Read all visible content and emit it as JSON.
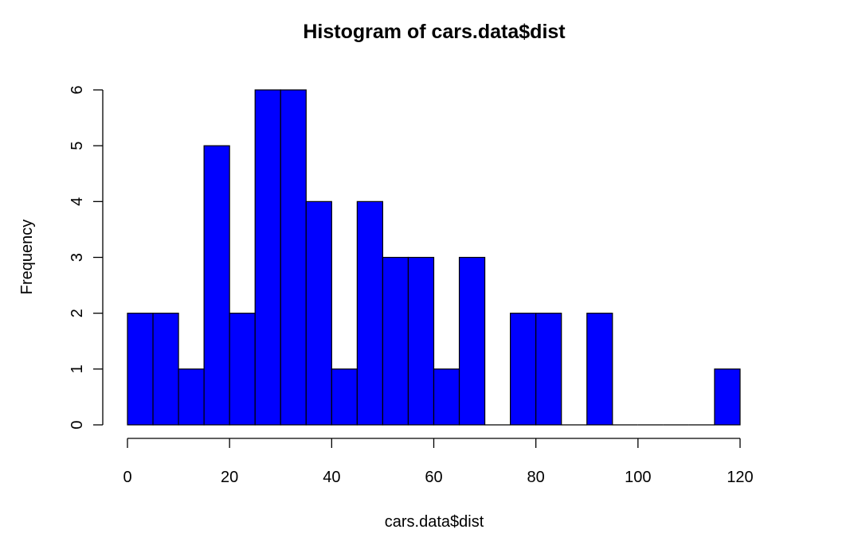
{
  "chart_data": {
    "type": "bar",
    "title": "Histogram of cars.data$dist",
    "xlabel": "cars.data$dist",
    "ylabel": "Frequency",
    "bins": [
      0,
      5,
      10,
      15,
      20,
      25,
      30,
      35,
      40,
      45,
      50,
      55,
      60,
      65,
      70,
      75,
      80,
      85,
      90,
      95,
      100,
      105,
      110,
      115
    ],
    "bin_width": 5,
    "values": [
      2,
      2,
      1,
      5,
      2,
      6,
      6,
      4,
      1,
      4,
      3,
      3,
      1,
      3,
      0,
      2,
      2,
      0,
      2,
      0,
      0,
      0,
      0,
      1
    ],
    "xlim": [
      0,
      120
    ],
    "ylim": [
      0,
      6
    ],
    "x_ticks": [
      0,
      20,
      40,
      60,
      80,
      100,
      120
    ],
    "y_ticks": [
      0,
      1,
      2,
      3,
      4,
      5,
      6
    ],
    "bar_color": "#0000ff",
    "grid": false,
    "legend": "none"
  }
}
